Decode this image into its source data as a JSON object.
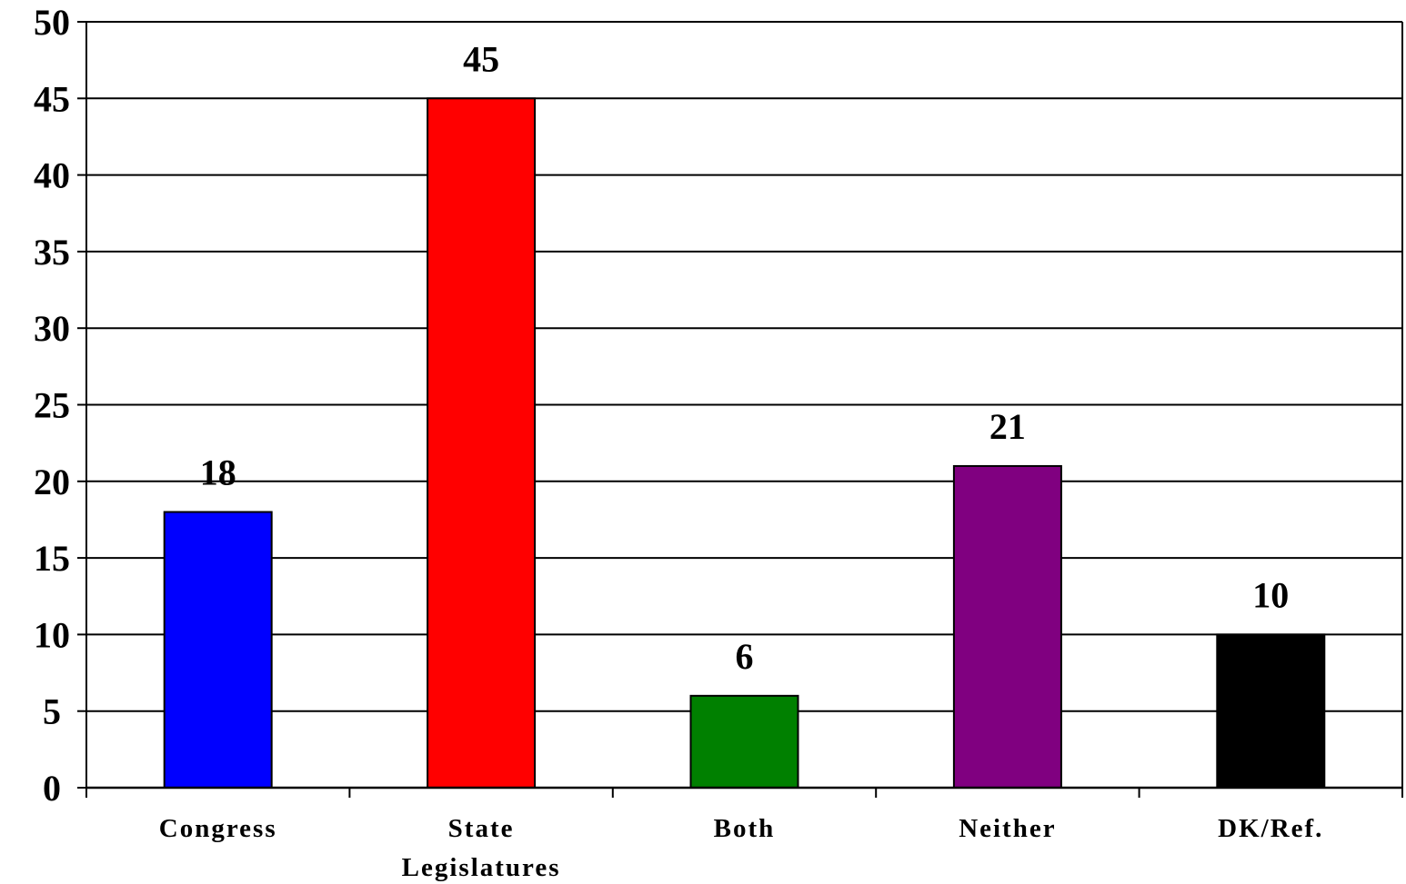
{
  "chart_data": {
    "type": "bar",
    "categories": [
      [
        "Congress"
      ],
      [
        "State",
        "Legislatures"
      ],
      [
        "Both"
      ],
      [
        "Neither"
      ],
      [
        "DK/Ref."
      ]
    ],
    "values": [
      18,
      45,
      6,
      21,
      10
    ],
    "data_labels": [
      "18",
      "45",
      "6",
      "21",
      "10"
    ],
    "colors": [
      "#0000ff",
      "#ff0000",
      "#008000",
      "#800080",
      "#000000"
    ],
    "title": "",
    "xlabel": "",
    "ylabel": "",
    "ylim": [
      0,
      50
    ],
    "yticks": [
      "0",
      "5",
      "10",
      "15",
      "20",
      "25",
      "30",
      "35",
      "40",
      "45",
      "50"
    ],
    "grid": true,
    "legend": "none"
  }
}
